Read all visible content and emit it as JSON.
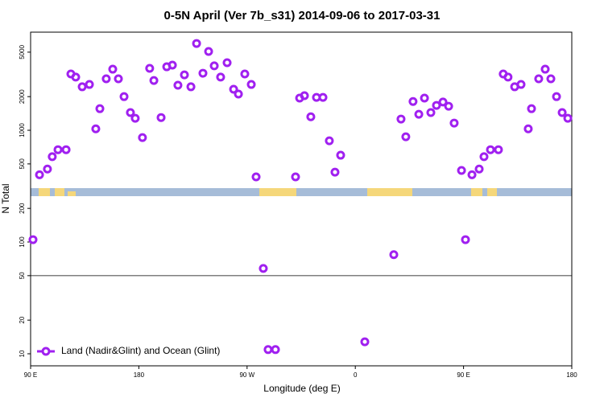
{
  "chart_data": {
    "type": "scatter",
    "title": "0-5N April (Ver 7b_s31)   2014-09-06 to 2017-03-31",
    "x_label": "Longitude (deg E)",
    "y_label": "N Total",
    "log_y": true,
    "xlim": [
      90,
      540
    ],
    "ylim": [
      7.8,
      7550
    ],
    "xticks": [
      {
        "value": 90,
        "label": "90 E"
      },
      {
        "value": 180,
        "label": "180"
      },
      {
        "value": 270,
        "label": "90 W"
      },
      {
        "value": 360,
        "label": "0"
      },
      {
        "value": 450,
        "label": "90 E"
      },
      {
        "value": 540,
        "label": "180"
      }
    ],
    "yticks": [
      10,
      20,
      50,
      100,
      200,
      500,
      1000,
      2000,
      5000
    ],
    "reference_line": 50,
    "legend": "bottom-left",
    "series": [
      {
        "name": "Land (Nadir&Glint) and Ocean (Glint)",
        "color": "#a020f0",
        "x": [
          92,
          97.4,
          104,
          108,
          112.8,
          119.5,
          123.5,
          127.5,
          132.9,
          138.9,
          144.2,
          147.6,
          152.9,
          158.3,
          163,
          167.7,
          173,
          177,
          183,
          189,
          192.5,
          198.5,
          203.2,
          207.9,
          212.5,
          217.9,
          223.3,
          228,
          233.3,
          238,
          242.7,
          248,
          253.4,
          258.8,
          262.8,
          268.1,
          273.5,
          277.5,
          283.5,
          287.5,
          293.6,
          310.3,
          313.7,
          317.7,
          323,
          327.7,
          333.1,
          338.4,
          343.1,
          347.8,
          367.9,
          392,
          398,
          402,
          408,
          412.8,
          417.5,
          422.8,
          427.5,
          432.9,
          437.6,
          442.2,
          448.3,
          451.6,
          457,
          463,
          467,
          472.4,
          479,
          483,
          487,
          492.5,
          497.8,
          503.8,
          506.5,
          512.5,
          517.9,
          522.6,
          527.3,
          532,
          536.7
        ],
        "values": [
          105,
          400,
          450,
          580,
          670,
          670,
          3190,
          2990,
          2450,
          2570,
          1030,
          1560,
          2890,
          3520,
          2890,
          2000,
          1440,
          1280,
          860,
          3580,
          2790,
          1300,
          3700,
          3830,
          2530,
          3130,
          2450,
          5980,
          3240,
          5070,
          3770,
          2990,
          4020,
          2330,
          2110,
          3190,
          2570,
          383,
          58,
          10.9,
          10.9,
          383,
          1940,
          2040,
          1320,
          1970,
          1970,
          805,
          422,
          598,
          12.8,
          77,
          1260,
          875,
          1810,
          1390,
          1940,
          1440,
          1670,
          1790,
          1640,
          1160,
          437,
          105,
          400,
          450,
          580,
          670,
          670,
          3190,
          2990,
          2450,
          2570,
          1030,
          1560,
          2890,
          3520,
          2890,
          2000,
          1440,
          1280
        ]
      }
    ]
  }
}
